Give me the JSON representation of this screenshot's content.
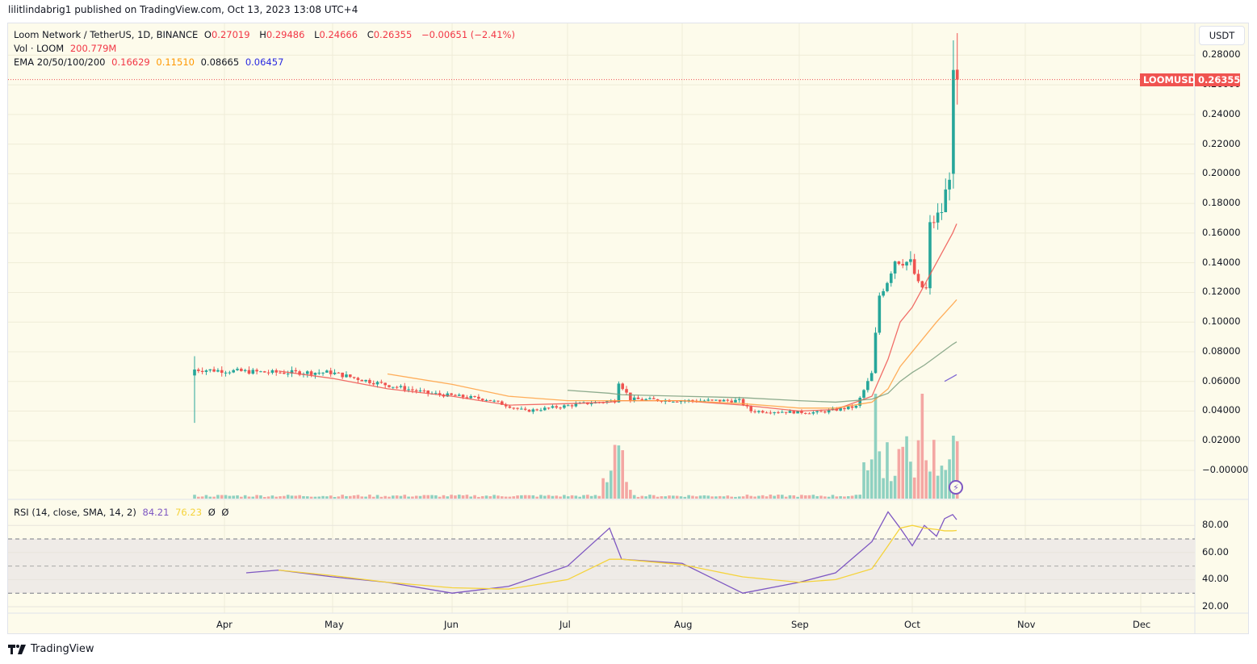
{
  "header": {
    "published": "lilitlindabrig1 published on TradingView.com, Oct 13, 2023 13:08 UTC+4"
  },
  "legend": {
    "symbol": "Loom Network / TetherUS, 1D, BINANCE",
    "o_label": "O",
    "o": "0.27019",
    "h_label": "H",
    "h": "0.29486",
    "l_label": "L",
    "l": "0.24666",
    "c_label": "C",
    "c": "0.26355",
    "change": "−0.00651 (−2.41%)",
    "vol_label": "Vol · LOOM",
    "vol": "200.779M",
    "ema_label": "EMA 20/50/100/200",
    "ema20": "0.16629",
    "ema50": "0.11510",
    "ema100": "0.08665",
    "ema200": "0.06457",
    "rsi_label": "RSI (14, close, SMA, 14, 2)",
    "rsi": "84.21",
    "rsi_sma": "76.23",
    "rsi_extra1": "Ø",
    "rsi_extra2": "Ø"
  },
  "price_axis": {
    "currency_button": "USDT",
    "ticks": [
      "0.28000",
      "0.26000",
      "0.24000",
      "0.22000",
      "0.20000",
      "0.18000",
      "0.16000",
      "0.14000",
      "0.12000",
      "0.10000",
      "0.08000",
      "0.06000",
      "0.04000",
      "0.02000",
      "−0.00000"
    ],
    "last_price_symbol": "LOOMUSDT",
    "last_price": "0.26355"
  },
  "rsi_axis": {
    "ticks": [
      "80.00",
      "60.00",
      "40.00",
      "20.00"
    ]
  },
  "time_axis": {
    "ticks": [
      "Apr",
      "May",
      "Jun",
      "Jul",
      "Aug",
      "Sep",
      "Oct",
      "Nov",
      "Dec"
    ]
  },
  "footer": {
    "brand": "TradingView"
  },
  "colors": {
    "up": "#26a69a",
    "down": "#ef5350",
    "vol_up": "#8fd1c1",
    "vol_down": "#f4a7a3",
    "ema20": "#ef5350",
    "ema50": "#ff9f40",
    "ema100": "#7a9e7e",
    "ema200": "#6a4fd0",
    "rsi": "#7e57c2",
    "rsi_sma": "#f5d33b",
    "background": "#fdfbeb"
  },
  "chart_data": {
    "type": "candlestick",
    "title": "Loom Network / TetherUS, 1D, BINANCE",
    "xlabel": "",
    "ylabel": "USDT",
    "ylim": [
      -0.01,
      0.3
    ],
    "x": [
      "Mar-24",
      "Apr-01",
      "Apr-15",
      "May-01",
      "May-15",
      "Jun-01",
      "Jun-15",
      "Jul-01",
      "Jul-12",
      "Jul-15",
      "Aug-01",
      "Aug-15",
      "Sep-01",
      "Sep-10",
      "Sep-18",
      "Sep-22",
      "Sep-28",
      "Oct-01",
      "Oct-05",
      "Oct-08",
      "Oct-10",
      "Oct-12",
      "Oct-13"
    ],
    "series": [
      {
        "name": "Close",
        "values": [
          0.068,
          0.066,
          0.066,
          0.06,
          0.052,
          0.048,
          0.04,
          0.045,
          0.06,
          0.047,
          0.047,
          0.04,
          0.039,
          0.042,
          0.065,
          0.12,
          0.14,
          0.125,
          0.15,
          0.178,
          0.205,
          0.27,
          0.2636
        ]
      },
      {
        "name": "EMA20",
        "values": [
          null,
          null,
          0.067,
          0.062,
          0.055,
          0.05,
          0.044,
          0.045,
          0.046,
          0.047,
          0.047,
          0.044,
          0.04,
          0.041,
          0.05,
          0.075,
          0.1,
          0.11,
          0.125,
          0.14,
          0.15,
          0.16,
          0.1663
        ]
      },
      {
        "name": "EMA50",
        "values": [
          null,
          null,
          null,
          null,
          0.065,
          0.058,
          0.05,
          0.047,
          0.047,
          0.047,
          0.047,
          0.045,
          0.042,
          0.042,
          0.046,
          0.055,
          0.07,
          0.08,
          0.09,
          0.1,
          0.106,
          0.112,
          0.1151
        ]
      },
      {
        "name": "EMA100",
        "values": [
          null,
          null,
          null,
          null,
          null,
          null,
          null,
          0.054,
          0.052,
          0.051,
          0.05,
          0.049,
          0.047,
          0.046,
          0.048,
          0.052,
          0.06,
          0.066,
          0.071,
          0.077,
          0.081,
          0.085,
          0.0867
        ]
      },
      {
        "name": "EMA200",
        "values": [
          null,
          null,
          null,
          null,
          null,
          null,
          null,
          null,
          null,
          null,
          null,
          null,
          null,
          null,
          null,
          null,
          null,
          null,
          null,
          null,
          0.06,
          0.063,
          0.0646
        ]
      },
      {
        "name": "RSI",
        "values": [
          null,
          45,
          47,
          42,
          38,
          30,
          35,
          50,
          78,
          55,
          52,
          30,
          38,
          45,
          68,
          90,
          78,
          65,
          80,
          72,
          85,
          88,
          84.21
        ]
      },
      {
        "name": "RSI SMA",
        "values": [
          null,
          null,
          47,
          43,
          38,
          34,
          33,
          40,
          55,
          55,
          51,
          42,
          38,
          40,
          48,
          65,
          78,
          80,
          78,
          77,
          76,
          76,
          76.23
        ]
      }
    ],
    "volume_last": "200.779M",
    "rsi_levels": [
      70,
      50,
      30
    ]
  }
}
